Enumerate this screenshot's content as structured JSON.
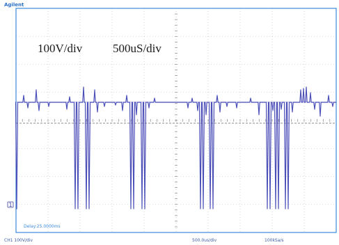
{
  "brand": "Agilent",
  "annotations": {
    "volts_per_div": "100V/div",
    "time_per_div": "500uS/div"
  },
  "delay_label": "Delay:25.0000ms",
  "status_bar": {
    "channel": "CH1 100V/div",
    "timebase": "500.0us/div",
    "sample_rate": "100kSa/s"
  },
  "channel_marker": "1",
  "colors": {
    "trace": "#4b4fb8",
    "border": "#3b8ad9",
    "grid": "#b9b9b9",
    "brand": "#2a6fc9"
  },
  "scope": {
    "h_divisions": 10,
    "v_divisions": 8,
    "ground_level_div": 1.0,
    "baseline_div": 4.1
  }
}
